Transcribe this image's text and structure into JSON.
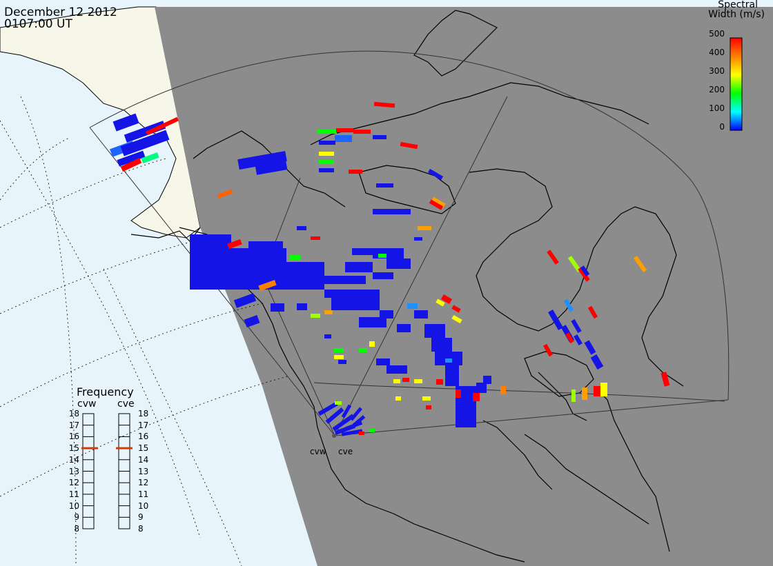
{
  "header": {
    "date": "December 12 2012",
    "time": "0107:00 UT"
  },
  "colorbar": {
    "title_line1": "Spectral",
    "title_line2": "Width (m/s)",
    "ticks": [
      "500",
      "400",
      "300",
      "200",
      "100",
      "0"
    ],
    "colors": [
      "#ff0000",
      "#ff8000",
      "#ffff00",
      "#00ff00",
      "#00ffff",
      "#0000ff"
    ]
  },
  "frequency_panel": {
    "title": "Frequency",
    "radars": [
      {
        "name": "cvw",
        "current_mhz": 15
      },
      {
        "name": "cve",
        "current_mhz": 15
      }
    ],
    "ticks": [
      "18",
      "17",
      "16",
      "15",
      "14",
      "13",
      "12",
      "11",
      "10",
      "9",
      "8"
    ]
  },
  "radar_sites": [
    "cvw",
    "cve"
  ],
  "colors": {
    "night": "#8c8c8c",
    "day_land": "#f7f7e9",
    "day_ocean": "#e7f4fb",
    "scatter_low": "#1414e6",
    "marker": "#d83a00"
  }
}
